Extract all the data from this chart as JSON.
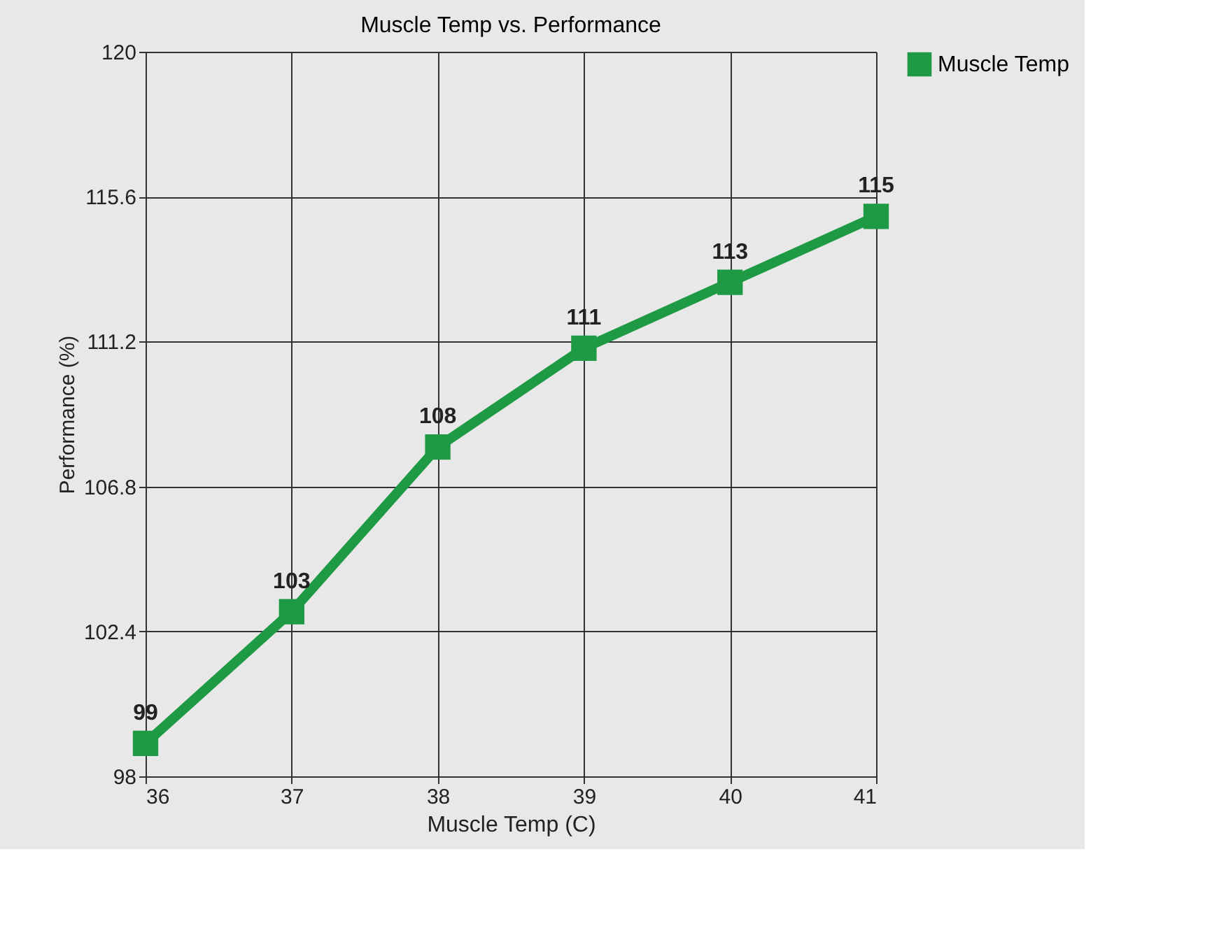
{
  "chart_data": {
    "type": "line",
    "title": "Muscle Temp vs. Performance",
    "xlabel": "Muscle Temp (C)",
    "ylabel": "Performance (%)",
    "x": [
      36,
      37,
      38,
      39,
      40,
      41
    ],
    "series": [
      {
        "name": "Muscle Temp",
        "color": "#1f9a44",
        "values": [
          99,
          103,
          108,
          111,
          113,
          115
        ]
      }
    ],
    "xlim": [
      36,
      41
    ],
    "xticks": [
      36,
      37,
      38,
      39,
      40,
      41
    ],
    "ylim": [
      98,
      120
    ],
    "yticks": [
      98,
      102.4,
      106.8,
      111.2,
      115.6,
      120
    ],
    "grid": true,
    "legend": "right",
    "marker": "square",
    "line_style": "solid",
    "data_labels": true
  }
}
